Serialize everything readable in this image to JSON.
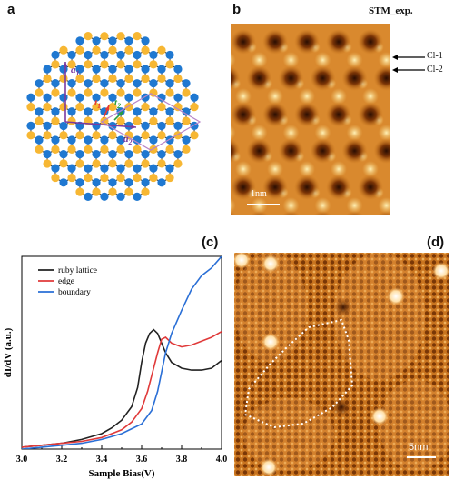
{
  "panels": {
    "a": {
      "label": "a",
      "vectors": {
        "a1": "a",
        "a1_sub": "1",
        "a2": "a",
        "a2_sub": "2",
        "t1": "t",
        "t1_sub": "1",
        "t2": "t",
        "t2_sub": "2"
      },
      "colors": {
        "blue_atom": "#1f78d1",
        "yellow_atom": "#f7b733",
        "bond": "#333333",
        "cell": "#b784c8",
        "arrow": "#7a3aa0",
        "t1": "#e53935",
        "t2": "#2e9d3a"
      }
    },
    "b": {
      "label": "b",
      "title": "STM_exp.",
      "annotations": [
        "Cl-1",
        "Cl-2"
      ],
      "scalebar": "1nm"
    },
    "c": {
      "label": "(c)",
      "chart_data": {
        "type": "line",
        "xlabel": "Sample Bias(V)",
        "ylabel": "dI/dV (a.u.)",
        "xlim": [
          3.0,
          4.0
        ],
        "ylim": [
          0,
          1
        ],
        "xticks": [
          "3.0",
          "3.2",
          "3.4",
          "3.6",
          "3.8",
          "4.0"
        ],
        "legend_position": "top-left",
        "series": [
          {
            "name": "ruby lattice",
            "color": "#222222",
            "x": [
              3.0,
              3.1,
              3.2,
              3.3,
              3.4,
              3.45,
              3.5,
              3.55,
              3.58,
              3.6,
              3.62,
              3.64,
              3.66,
              3.68,
              3.7,
              3.72,
              3.75,
              3.8,
              3.85,
              3.9,
              3.95,
              4.0
            ],
            "y": [
              0.01,
              0.02,
              0.03,
              0.05,
              0.08,
              0.11,
              0.15,
              0.22,
              0.32,
              0.45,
              0.55,
              0.6,
              0.62,
              0.6,
              0.55,
              0.5,
              0.45,
              0.42,
              0.41,
              0.41,
              0.42,
              0.46
            ]
          },
          {
            "name": "edge",
            "color": "#e03a3a",
            "x": [
              3.0,
              3.1,
              3.2,
              3.3,
              3.4,
              3.5,
              3.55,
              3.6,
              3.63,
              3.65,
              3.68,
              3.7,
              3.72,
              3.75,
              3.8,
              3.85,
              3.9,
              3.95,
              4.0
            ],
            "y": [
              0.01,
              0.02,
              0.03,
              0.04,
              0.06,
              0.1,
              0.14,
              0.21,
              0.3,
              0.38,
              0.5,
              0.57,
              0.58,
              0.55,
              0.53,
              0.54,
              0.56,
              0.58,
              0.61
            ]
          },
          {
            "name": "boundary",
            "color": "#2a6fd6",
            "x": [
              3.0,
              3.1,
              3.2,
              3.3,
              3.4,
              3.5,
              3.6,
              3.65,
              3.68,
              3.7,
              3.72,
              3.75,
              3.8,
              3.85,
              3.9,
              3.95,
              4.0
            ],
            "y": [
              0.0,
              0.01,
              0.02,
              0.03,
              0.05,
              0.08,
              0.13,
              0.2,
              0.3,
              0.4,
              0.5,
              0.6,
              0.72,
              0.83,
              0.9,
              0.94,
              1.0
            ]
          }
        ]
      }
    },
    "d": {
      "label": "(d)",
      "scalebar": "5nm"
    }
  }
}
